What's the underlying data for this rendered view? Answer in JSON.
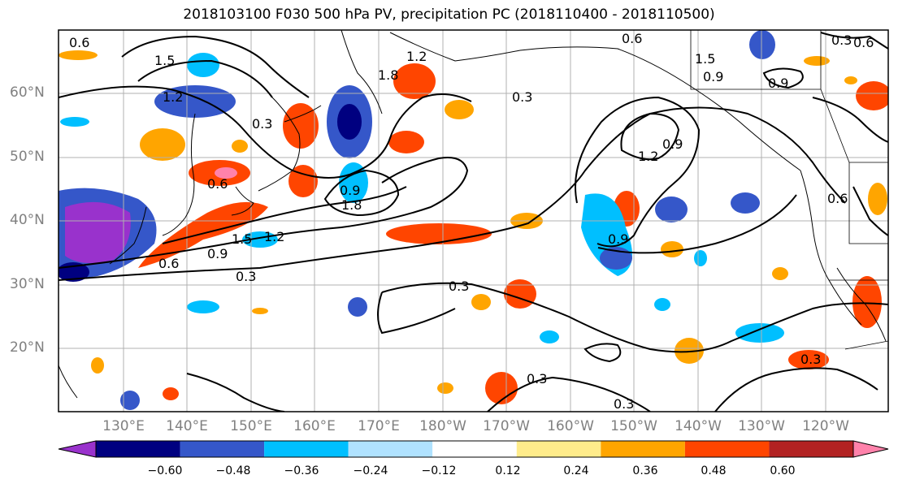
{
  "title": "2018103100 F030 500 hPa PV, precipitation PC (2018110400 - 2018110500)",
  "lat_labels": [
    "60°N",
    "50°N",
    "40°N",
    "30°N",
    "20°N"
  ],
  "lon_labels": [
    "130°E",
    "140°E",
    "150°E",
    "160°E",
    "170°E",
    "180°W",
    "170°W",
    "160°W",
    "150°W",
    "140°W",
    "130°W",
    "120°W"
  ],
  "colorbar": {
    "colors": [
      "#9932cc",
      "#000080",
      "#3557c9",
      "#00bfff",
      "#b0e2ff",
      "#ffffff",
      "#ffec8b",
      "#ffa500",
      "#ff4500",
      "#b22222",
      "#ff82ab"
    ],
    "tick_labels": [
      "−0.60",
      "−0.48",
      "−0.36",
      "−0.24",
      "−0.12",
      "0.12",
      "0.24",
      "0.36",
      "0.48",
      "0.60"
    ]
  },
  "contour_labels": [
    "0.6",
    "1.5",
    "1.2",
    "0.3",
    "1.8",
    "0.6",
    "0.3",
    "1.5",
    "0.9",
    "1.2",
    "0.3",
    "0.9",
    "1.2",
    "0.9",
    "0.9",
    "0.6",
    "0.3",
    "0.3",
    "0.3",
    "0.3",
    "1.8",
    "1.5",
    "1.2",
    "0.6",
    "0.9",
    "0.6",
    "0.9",
    "0.6",
    "0.3"
  ],
  "contour_lines": "black",
  "precip_positive_colors": [
    "#ffec8b",
    "#ffa500",
    "#ff4500",
    "#b22222",
    "#ff82ab"
  ],
  "precip_negative_colors": [
    "#b0e2ff",
    "#00bfff",
    "#3557c9",
    "#000080",
    "#9932cc"
  ]
}
